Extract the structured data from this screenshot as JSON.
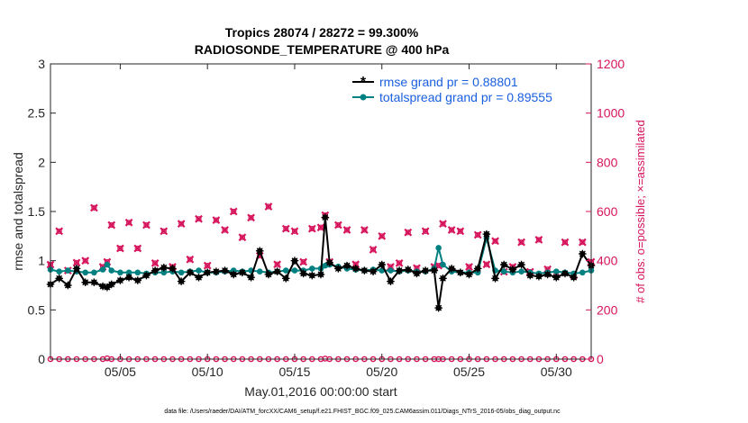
{
  "chart_data": {
    "type": "line",
    "title_line1": "Tropics 28074 / 28272 = 99.300%",
    "title_line2": "RADIOSONDE_TEMPERATURE @ 400 hPa",
    "xlabel": "May.01,2016 00:00:00 start",
    "ylabel": "rmse and totalspread",
    "ylabel_right": "# of obs: o=possible; ×=assimilated",
    "footnote": "data file: /Users/raeder/DAI/ATM_forcXX/CAM6_setup/f.e21.FHIST_BGC.f09_025.CAM6assim.011/Diags_NTrS_2016-05/obs_diag_output.nc",
    "xlim": [
      1,
      32
    ],
    "ylim": [
      0,
      3
    ],
    "ylim_right": [
      0,
      1200
    ],
    "x_ticks": [
      5,
      10,
      15,
      20,
      25,
      30
    ],
    "x_tick_labels": [
      "05/05",
      "05/10",
      "05/15",
      "05/20",
      "05/25",
      "05/30"
    ],
    "y_ticks": [
      "0",
      "0.5",
      "1",
      "1.5",
      "2",
      "2.5",
      "3"
    ],
    "y_ticks_right": [
      "0",
      "200",
      "400",
      "600",
      "800",
      "1000",
      "1200"
    ],
    "colors": {
      "rmse": "#000000",
      "spread": "#008080",
      "obs": "#d6145c",
      "legend_text": "#1a5fe0"
    },
    "x": [
      1.0,
      1.5,
      2.0,
      2.5,
      3.0,
      3.5,
      4.0,
      4.25,
      4.5,
      5.0,
      5.5,
      6.0,
      6.5,
      7.0,
      7.5,
      8.0,
      8.5,
      9.0,
      9.5,
      10.0,
      10.5,
      11.0,
      11.5,
      12.0,
      12.5,
      13.0,
      13.5,
      14.0,
      14.5,
      15.0,
      15.5,
      16.0,
      16.5,
      16.75,
      17.0,
      17.5,
      18.0,
      18.5,
      19.0,
      19.5,
      20.0,
      20.5,
      21.0,
      21.5,
      22.0,
      22.5,
      23.0,
      23.25,
      23.5,
      24.0,
      24.5,
      25.0,
      25.5,
      26.0,
      26.5,
      27.0,
      27.5,
      28.0,
      28.5,
      29.0,
      29.5,
      30.0,
      30.5,
      31.0,
      31.5,
      32.0
    ],
    "series": [
      {
        "name": "rmse grand pr = 0.88801",
        "marker": "*",
        "values": [
          0.76,
          0.82,
          0.75,
          0.92,
          0.78,
          0.78,
          0.74,
          0.73,
          0.76,
          0.8,
          0.83,
          0.8,
          0.85,
          0.9,
          0.93,
          0.92,
          0.79,
          0.88,
          0.83,
          0.88,
          0.89,
          0.9,
          0.86,
          0.88,
          0.83,
          1.1,
          0.86,
          0.89,
          0.82,
          1.0,
          0.87,
          0.85,
          0.86,
          1.44,
          0.98,
          0.92,
          0.95,
          0.92,
          0.9,
          0.89,
          0.96,
          0.79,
          0.9,
          0.91,
          0.87,
          0.9,
          0.9,
          0.52,
          0.82,
          0.92,
          0.88,
          0.86,
          0.92,
          1.27,
          0.82,
          0.96,
          0.91,
          0.96,
          0.85,
          0.84,
          0.86,
          0.83,
          0.87,
          0.83,
          1.07,
          0.95
        ]
      },
      {
        "name": "totalspread grand pr = 0.89555",
        "marker": "o",
        "values": [
          0.91,
          0.89,
          0.9,
          0.89,
          0.88,
          0.88,
          0.91,
          0.96,
          0.9,
          0.88,
          0.88,
          0.88,
          0.87,
          0.88,
          0.88,
          0.89,
          0.88,
          0.89,
          0.9,
          0.88,
          0.88,
          0.89,
          0.9,
          0.89,
          0.9,
          0.89,
          0.88,
          0.89,
          0.9,
          0.9,
          0.9,
          0.92,
          0.92,
          0.95,
          0.96,
          0.94,
          0.92,
          0.91,
          0.9,
          0.91,
          0.9,
          0.9,
          0.89,
          0.9,
          0.89,
          0.89,
          0.92,
          1.13,
          0.96,
          0.89,
          0.88,
          0.88,
          0.88,
          1.23,
          0.9,
          0.89,
          0.88,
          0.89,
          0.88,
          0.87,
          0.88,
          0.89,
          0.88,
          0.87,
          0.88,
          0.9
        ]
      },
      {
        "name": "obs possible",
        "marker": "o",
        "axis": "right",
        "values": [
          384,
          520,
          360,
          392,
          400,
          615,
          375,
          395,
          545,
          450,
          555,
          450,
          545,
          390,
          520,
          375,
          550,
          405,
          570,
          380,
          565,
          525,
          600,
          495,
          575,
          420,
          620,
          385,
          530,
          520,
          395,
          530,
          535,
          585,
          395,
          545,
          525,
          385,
          525,
          445,
          500,
          375,
          390,
          515,
          370,
          520,
          375,
          380,
          550,
          525,
          520,
          375,
          505,
          385,
          480,
          355,
          375,
          475,
          355,
          485,
          365,
          345,
          475,
          340,
          475,
          395
        ]
      },
      {
        "name": "obs assimilated",
        "marker": "x",
        "axis": "right",
        "values": [
          384,
          520,
          360,
          392,
          400,
          615,
          375,
          395,
          545,
          450,
          555,
          450,
          545,
          390,
          520,
          375,
          550,
          405,
          570,
          380,
          565,
          525,
          600,
          495,
          575,
          420,
          620,
          385,
          530,
          520,
          395,
          530,
          535,
          585,
          395,
          545,
          525,
          385,
          525,
          445,
          500,
          375,
          390,
          515,
          370,
          520,
          375,
          380,
          550,
          525,
          520,
          375,
          505,
          385,
          480,
          355,
          375,
          475,
          355,
          485,
          365,
          345,
          475,
          340,
          475,
          395
        ]
      },
      {
        "name": "obs possible (bottom row)",
        "marker": "o",
        "axis": "right",
        "values": [
          0,
          0,
          0,
          0,
          0,
          0,
          0,
          3,
          0,
          0,
          0,
          0,
          0,
          0,
          0,
          0,
          0,
          0,
          0,
          0,
          0,
          0,
          0,
          0,
          0,
          0,
          0,
          0,
          0,
          0,
          0,
          0,
          0,
          2,
          0,
          0,
          0,
          0,
          0,
          0,
          0,
          0,
          0,
          0,
          0,
          0,
          0,
          0,
          0,
          0,
          0,
          0,
          0,
          0,
          0,
          0,
          0,
          0,
          0,
          0,
          0,
          0,
          0,
          0,
          0,
          0
        ]
      }
    ]
  }
}
